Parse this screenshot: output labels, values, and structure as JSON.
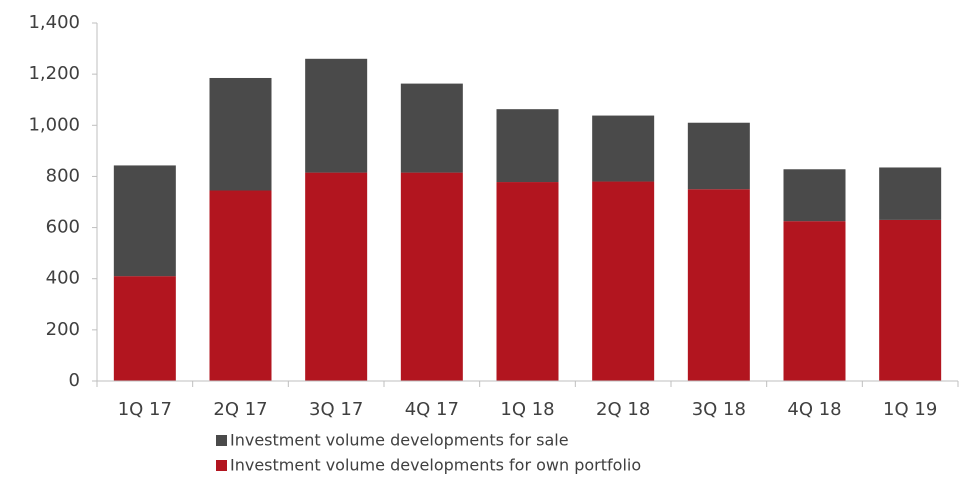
{
  "chart_data": {
    "type": "stacked_bar",
    "categories": [
      "1Q 17",
      "2Q 17",
      "3Q 17",
      "4Q 17",
      "1Q 18",
      "2Q 18",
      "3Q 18",
      "4Q 18",
      "1Q 19"
    ],
    "series": [
      {
        "name": "Investment volume developments for sale",
        "color": "#4a4a4a",
        "values": [
          433,
          440,
          445,
          348,
          285,
          258,
          260,
          203,
          205
        ]
      },
      {
        "name": "Investment volume developments for own portfolio",
        "color": "#b2151f",
        "values": [
          410,
          745,
          815,
          815,
          778,
          780,
          750,
          625,
          630
        ]
      }
    ],
    "ylim": [
      0,
      1400
    ],
    "yticks": [
      0,
      200,
      400,
      600,
      800,
      {
        "value": 1000,
        "label": "1,000"
      },
      {
        "value": 1200,
        "label": "1,200"
      },
      {
        "value": 1400,
        "label": "1,400"
      }
    ],
    "grid": false,
    "legend": "bottom"
  }
}
